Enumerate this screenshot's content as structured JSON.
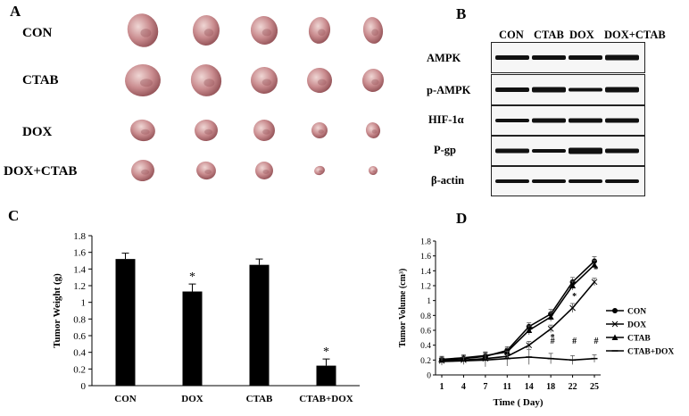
{
  "panels": {
    "a": "A",
    "b": "B",
    "c": "C",
    "d": "D"
  },
  "panel_a": {
    "rows": [
      "CON",
      "CTAB",
      "DOX",
      "DOX+CTAB"
    ],
    "tumor_colors": {
      "base": "#c98b8e",
      "highlight": "#efd6d4",
      "shadow": "#8f4e53"
    }
  },
  "panel_b": {
    "columns": [
      "CON",
      "CTAB",
      "DOX",
      "DOX+CTAB"
    ],
    "proteins": [
      "AMPK",
      "p-AMPK",
      "HIF-1α",
      "P-gp",
      "β-actin"
    ],
    "band_color": "#111111"
  },
  "chart_data": [
    {
      "type": "bar",
      "panel": "C",
      "categories": [
        "CON",
        "DOX",
        "CTAB",
        "CTAB+DOX"
      ],
      "values": [
        1.52,
        1.13,
        1.45,
        0.24
      ],
      "errors": [
        0.07,
        0.09,
        0.07,
        0.08
      ],
      "significance": [
        "",
        "*",
        "",
        "*"
      ],
      "ylabel": "Tumor Weight (g)",
      "xlabel": "",
      "ylim": [
        0,
        1.8
      ],
      "yticks": [
        "0",
        "0.2",
        "0.4",
        "0.6",
        "0.8",
        "1",
        "1.2",
        "1.4",
        "1.6",
        "1.8"
      ],
      "bar_color": "#000000"
    },
    {
      "type": "line",
      "panel": "D",
      "x_ticks": [
        "1",
        "4",
        "7",
        "11",
        "14",
        "18",
        "22",
        "25"
      ],
      "xlabel": "Time ( Day)",
      "ylabel": "Tumor Volume (cm³)",
      "ylim": [
        0,
        1.8
      ],
      "yticks": [
        "0",
        "0.2",
        "0.4",
        "0.6",
        "0.8",
        "1",
        "1.2",
        "1.4",
        "1.6",
        "1.8"
      ],
      "series": [
        {
          "name": "CON",
          "marker": "circle",
          "values": [
            0.2,
            0.22,
            0.25,
            0.33,
            0.65,
            0.82,
            1.25,
            1.53
          ],
          "errors": [
            0.04,
            0.04,
            0.05,
            0.05,
            0.05,
            0.06,
            0.06,
            0.06
          ]
        },
        {
          "name": "DOX",
          "marker": "x",
          "values": [
            0.19,
            0.2,
            0.22,
            0.25,
            0.4,
            0.62,
            0.9,
            1.25
          ],
          "errors": [
            0.04,
            0.04,
            0.04,
            0.05,
            0.05,
            0.05,
            0.06,
            0.05
          ]
        },
        {
          "name": "CTAB",
          "marker": "triangle",
          "values": [
            0.21,
            0.23,
            0.26,
            0.31,
            0.6,
            0.78,
            1.2,
            1.48
          ],
          "errors": [
            0.04,
            0.04,
            0.05,
            0.05,
            0.06,
            0.06,
            0.06,
            0.06
          ]
        },
        {
          "name": "CTAB+DOX",
          "marker": "dash",
          "values": [
            0.18,
            0.19,
            0.2,
            0.22,
            0.24,
            0.22,
            0.2,
            0.22
          ],
          "errors": [
            0.05,
            0.05,
            0.09,
            0.1,
            0.1,
            0.07,
            0.06,
            0.05
          ]
        }
      ],
      "annotations": [
        {
          "symbol": "*",
          "x_index": 4,
          "value": 0.57
        },
        {
          "symbol": "*",
          "x_index": 5,
          "value": 0.47
        },
        {
          "symbol": "*",
          "x_index": 6,
          "value": 1.02
        },
        {
          "symbol": "*",
          "x_index": 7,
          "value": 1.38
        },
        {
          "symbol": "#",
          "x_index": 5,
          "value": 0.42
        },
        {
          "symbol": "#",
          "x_index": 6,
          "value": 0.42
        },
        {
          "symbol": "#",
          "x_index": 7,
          "value": 0.42
        }
      ]
    }
  ]
}
